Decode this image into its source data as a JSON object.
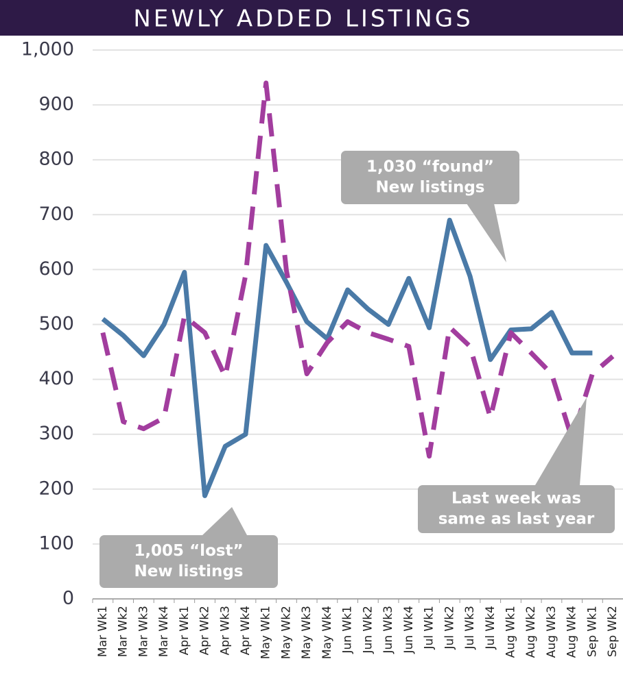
{
  "chart_data": {
    "type": "line",
    "title": "NEWLY ADDED LISTINGS",
    "categories": [
      "Mar Wk1",
      "Mar Wk2",
      "Mar Wk3",
      "Mar Wk4",
      "Apr Wk1",
      "Apr Wk2",
      "Apr Wk3",
      "Apr Wk4",
      "May Wk1",
      "May Wk2",
      "May Wk3",
      "May Wk4",
      "Jun Wk1",
      "Jun Wk2",
      "Jun Wk3",
      "Jun Wk4",
      "Jul Wk1",
      "Jul Wk2",
      "Jul Wk3",
      "Jul Wk4",
      "Aug Wk1",
      "Aug Wk2",
      "Aug Wk3",
      "Aug Wk4",
      "Sep Wk1",
      "Sep Wk2"
    ],
    "series": [
      {
        "color": "#4a7aa7",
        "dashed": false,
        "values": [
          510,
          480,
          443,
          500,
          595,
          188,
          278,
          300,
          644,
          577,
          505,
          474,
          563,
          528,
          500,
          584,
          494,
          690,
          588,
          436,
          490,
          492,
          522,
          448,
          448,
          null
        ]
      },
      {
        "color": "#a23d9e",
        "dashed": true,
        "values": [
          485,
          323,
          310,
          330,
          515,
          485,
          405,
          590,
          940,
          598,
          410,
          467,
          505,
          485,
          473,
          460,
          260,
          495,
          460,
          330,
          485,
          448,
          410,
          292,
          410,
          442
        ]
      }
    ],
    "ylim": [
      0,
      1000
    ],
    "yticks": [
      0,
      100,
      200,
      300,
      400,
      500,
      600,
      700,
      800,
      900,
      {
        "value": 1000,
        "label": "1,000"
      }
    ],
    "grid": true,
    "annotations": [
      {
        "lines": [
          "1,030 “found”",
          "New listings"
        ]
      },
      {
        "lines": [
          "1,005 “lost”",
          "New listings"
        ]
      },
      {
        "lines": [
          "Last week was",
          "same as last year"
        ]
      }
    ]
  }
}
